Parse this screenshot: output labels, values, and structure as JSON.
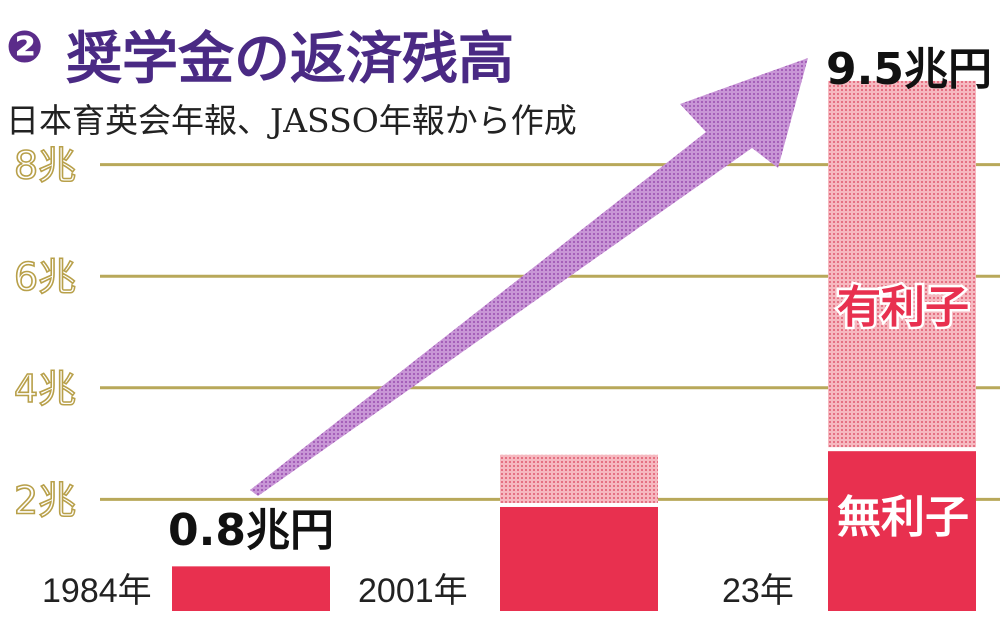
{
  "header": {
    "number_badge": "❷",
    "title": "奨学金の返済残高",
    "source": "日本育英会年報、JASSO年報から作成"
  },
  "chart_data": {
    "type": "bar",
    "stacked": true,
    "categories": [
      "1984年",
      "2001年",
      "23年"
    ],
    "series": [
      {
        "name": "無利子",
        "values": [
          0.8,
          1.9,
          2.9
        ],
        "color": "#e8304f"
      },
      {
        "name": "有利子",
        "values": [
          0.0,
          0.9,
          6.6
        ],
        "color": "#f2a2ac"
      }
    ],
    "y_ticks": [
      {
        "value": 2,
        "label": "2兆"
      },
      {
        "value": 4,
        "label": "4兆"
      },
      {
        "value": 6,
        "label": "6兆"
      },
      {
        "value": 8,
        "label": "8兆"
      }
    ],
    "ylim": [
      0,
      10
    ],
    "grid": true,
    "grid_color": "#b8a85a",
    "arrow_color": "#b070c4",
    "annotations": {
      "start_total": "0.8兆円",
      "end_total": "9.5兆円",
      "segment_label_interest": "有利子",
      "segment_label_nointerest": "無利子"
    }
  }
}
